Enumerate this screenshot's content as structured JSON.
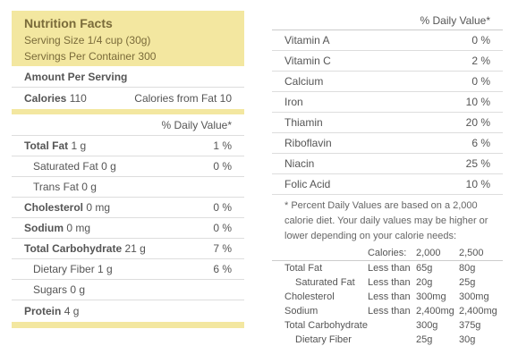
{
  "left": {
    "title": "Nutrition Facts",
    "serving_size": "Serving Size 1/4 cup (30g)",
    "servings_per_container": "Servings Per Container 300",
    "amount_per_serving": "Amount Per Serving",
    "calories_label": "Calories",
    "calories_value": "110",
    "calories_from_fat": "Calories from Fat 10",
    "daily_value_header": "% Daily Value*",
    "nutrients": [
      {
        "label": "Total Fat",
        "amount": "1 g",
        "dv": "1 %",
        "bold": true,
        "sub": false
      },
      {
        "label": "Saturated Fat",
        "amount": "0 g",
        "dv": "0 %",
        "bold": false,
        "sub": true
      },
      {
        "label": "Trans Fat",
        "amount": "0 g",
        "dv": "",
        "bold": false,
        "sub": true
      },
      {
        "label": "Cholesterol",
        "amount": "0 mg",
        "dv": "0 %",
        "bold": true,
        "sub": false
      },
      {
        "label": "Sodium",
        "amount": "0 mg",
        "dv": "0 %",
        "bold": true,
        "sub": false
      },
      {
        "label": "Total Carbohydrate",
        "amount": "21 g",
        "dv": "7 %",
        "bold": true,
        "sub": false
      },
      {
        "label": "Dietary Fiber",
        "amount": "1 g",
        "dv": "6 %",
        "bold": false,
        "sub": true
      },
      {
        "label": "Sugars",
        "amount": "0 g",
        "dv": "",
        "bold": false,
        "sub": true
      }
    ],
    "protein_label": "Protein",
    "protein_amount": "4 g"
  },
  "right": {
    "daily_value_header": "% Daily Value*",
    "vitamins": [
      {
        "label": "Vitamin A",
        "dv": "0 %"
      },
      {
        "label": "Vitamin C",
        "dv": "2 %"
      },
      {
        "label": "Calcium",
        "dv": "0 %"
      },
      {
        "label": "Iron",
        "dv": "10 %"
      },
      {
        "label": "Thiamin",
        "dv": "20 %"
      },
      {
        "label": "Riboflavin",
        "dv": "6 %"
      },
      {
        "label": "Niacin",
        "dv": "25 %"
      },
      {
        "label": "Folic Acid",
        "dv": "10 %"
      }
    ],
    "footnote": "* Percent Daily Values are based on a 2,000 calorie diet. Your daily values may be higher or lower depending on your calorie needs:",
    "footnote_table": {
      "header": [
        "",
        "Calories:",
        "2,000",
        "2,500"
      ],
      "rows": [
        [
          "Total Fat",
          "Less than",
          "65g",
          "80g"
        ],
        [
          "Saturated Fat",
          "Less than",
          "20g",
          "25g"
        ],
        [
          "Cholesterol",
          "Less than",
          "300mg",
          "300mg"
        ],
        [
          "Sodium",
          "Less than",
          "2,400mg",
          "2,400mg"
        ],
        [
          "Total Carbohydrate",
          "",
          "300g",
          "375g"
        ],
        [
          "Dietary Fiber",
          "",
          "25g",
          "30g"
        ]
      ]
    }
  },
  "colors": {
    "highlight": "#f3e7a0",
    "header_text": "#7a6b3a",
    "body_text": "#555555",
    "divider": "#dddddd"
  }
}
